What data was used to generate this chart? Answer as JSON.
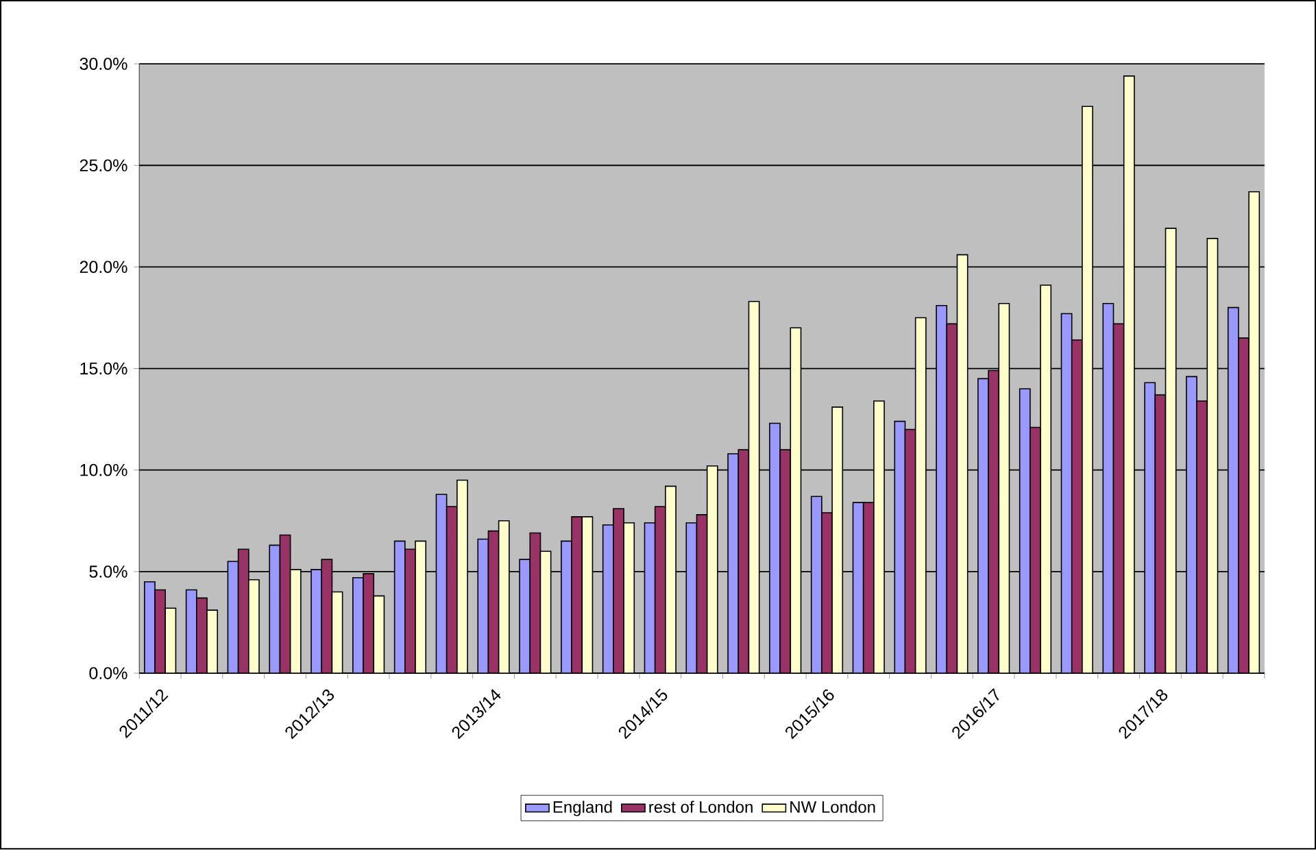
{
  "chart_data": {
    "type": "bar",
    "categories": [
      "2011/12",
      null,
      null,
      null,
      "2012/13",
      null,
      null,
      null,
      "2013/14",
      null,
      null,
      null,
      "2014/15",
      null,
      null,
      null,
      "2015/16",
      null,
      null,
      null,
      "2016/17",
      null,
      null,
      null,
      "2017/18",
      null,
      null
    ],
    "series": [
      {
        "name": "England",
        "color": "#9999ff",
        "values": [
          4.5,
          4.1,
          5.5,
          6.3,
          5.1,
          4.7,
          6.5,
          8.8,
          6.6,
          5.6,
          6.5,
          7.3,
          7.4,
          7.4,
          10.8,
          12.3,
          8.7,
          8.4,
          12.4,
          18.1,
          14.5,
          14.0,
          17.7,
          18.2,
          14.3,
          14.6,
          18.0
        ]
      },
      {
        "name": "rest of London",
        "color": "#993366",
        "values": [
          4.1,
          3.7,
          6.1,
          6.8,
          5.6,
          4.9,
          6.1,
          8.2,
          7.0,
          6.9,
          7.7,
          8.1,
          8.2,
          7.8,
          11.0,
          11.0,
          7.9,
          8.4,
          12.0,
          17.2,
          14.9,
          12.1,
          16.4,
          17.2,
          13.7,
          13.4,
          16.5
        ]
      },
      {
        "name": "NW London",
        "color": "#ffffcc",
        "values": [
          3.2,
          3.1,
          4.6,
          5.1,
          4.0,
          3.8,
          6.5,
          9.5,
          7.5,
          6.0,
          7.7,
          7.4,
          9.2,
          10.2,
          18.3,
          17.0,
          13.1,
          13.4,
          17.5,
          20.6,
          18.2,
          19.1,
          27.9,
          29.4,
          21.9,
          21.4,
          23.7
        ]
      }
    ],
    "ylim": [
      0,
      30
    ],
    "yticks": [
      {
        "value": 0,
        "label": "0.0%"
      },
      {
        "value": 5,
        "label": "5.0%"
      },
      {
        "value": 10,
        "label": "10.0%"
      },
      {
        "value": 15,
        "label": "15.0%"
      },
      {
        "value": 20,
        "label": "20.0%"
      },
      {
        "value": 25,
        "label": "25.0%"
      },
      {
        "value": 30,
        "label": "30.0%"
      }
    ],
    "grid": "y",
    "legend": "bottom"
  }
}
